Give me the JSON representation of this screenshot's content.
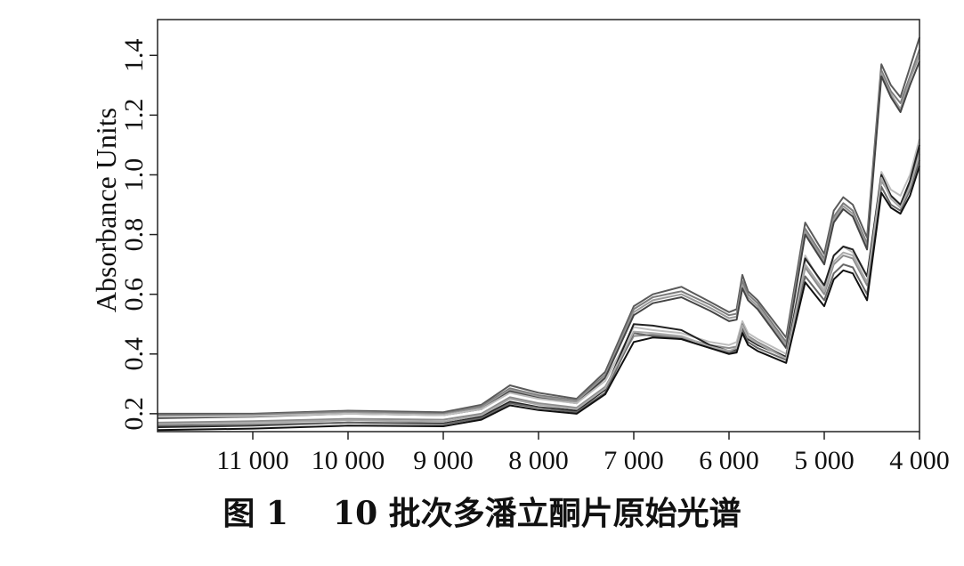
{
  "caption": "图 1    10 批次多潘立酮片原始光谱",
  "chart_data": {
    "type": "line",
    "title": "",
    "xlabel": "",
    "ylabel": "Absorbance Units",
    "x_reversed": true,
    "xlim": [
      12000,
      4000
    ],
    "ylim": [
      0.14,
      1.52
    ],
    "xticks": [
      11000,
      10000,
      9000,
      8000,
      7000,
      6000,
      5000,
      4000
    ],
    "xtick_labels": [
      "11 000",
      "10 000",
      "9 000",
      "8 000",
      "7 000",
      "6 000",
      "5 000",
      "4 000"
    ],
    "yticks": [
      0.2,
      0.4,
      0.6,
      0.8,
      1.0,
      1.2,
      1.4
    ],
    "ytick_labels": [
      "0.2",
      "0.4",
      "0.6",
      "0.8",
      "1.0",
      "1.2",
      "1.4"
    ],
    "grid": false,
    "legend": "none",
    "x": [
      12000,
      11000,
      10000,
      9000,
      8600,
      8300,
      8000,
      7600,
      7300,
      7000,
      6800,
      6500,
      6200,
      6000,
      5920,
      5860,
      5800,
      5700,
      5400,
      5200,
      5000,
      4900,
      4800,
      4700,
      4550,
      4400,
      4300,
      4200,
      4100,
      4000
    ],
    "series": [
      {
        "color": "#5a5a5a",
        "values": [
          0.2,
          0.2,
          0.21,
          0.205,
          0.23,
          0.295,
          0.27,
          0.25,
          0.34,
          0.56,
          0.6,
          0.625,
          0.575,
          0.54,
          0.55,
          0.665,
          0.61,
          0.58,
          0.455,
          0.84,
          0.735,
          0.88,
          0.925,
          0.9,
          0.79,
          1.37,
          1.3,
          1.26,
          1.36,
          1.46
        ]
      },
      {
        "color": "#7c7c7c",
        "values": [
          0.195,
          0.197,
          0.207,
          0.2,
          0.225,
          0.285,
          0.262,
          0.245,
          0.33,
          0.55,
          0.59,
          0.61,
          0.565,
          0.53,
          0.535,
          0.645,
          0.6,
          0.57,
          0.44,
          0.82,
          0.72,
          0.86,
          0.905,
          0.88,
          0.77,
          1.35,
          1.28,
          1.24,
          1.33,
          1.42
        ]
      },
      {
        "color": "#9a9a9a",
        "values": [
          0.19,
          0.193,
          0.203,
          0.197,
          0.22,
          0.28,
          0.257,
          0.24,
          0.325,
          0.54,
          0.58,
          0.6,
          0.555,
          0.52,
          0.525,
          0.63,
          0.59,
          0.56,
          0.43,
          0.81,
          0.71,
          0.85,
          0.895,
          0.87,
          0.76,
          1.34,
          1.27,
          1.22,
          1.32,
          1.4
        ]
      },
      {
        "color": "#444444",
        "values": [
          0.185,
          0.19,
          0.2,
          0.195,
          0.215,
          0.275,
          0.252,
          0.235,
          0.32,
          0.53,
          0.57,
          0.59,
          0.545,
          0.51,
          0.515,
          0.62,
          0.58,
          0.55,
          0.42,
          0.8,
          0.7,
          0.84,
          0.885,
          0.86,
          0.75,
          1.33,
          1.26,
          1.21,
          1.3,
          1.38
        ]
      },
      {
        "color": "#bdbdbd",
        "values": [
          0.19,
          0.192,
          0.2,
          0.195,
          0.215,
          0.27,
          0.25,
          0.235,
          0.31,
          0.49,
          0.48,
          0.47,
          0.44,
          0.43,
          0.44,
          0.51,
          0.47,
          0.45,
          0.4,
          0.73,
          0.62,
          0.73,
          0.76,
          0.74,
          0.66,
          1.01,
          0.95,
          0.93,
          1.0,
          1.12
        ]
      },
      {
        "color": "#8c8c8c",
        "values": [
          0.17,
          0.175,
          0.183,
          0.18,
          0.2,
          0.255,
          0.235,
          0.22,
          0.29,
          0.46,
          0.465,
          0.455,
          0.43,
          0.42,
          0.425,
          0.5,
          0.46,
          0.44,
          0.39,
          0.69,
          0.6,
          0.7,
          0.73,
          0.72,
          0.63,
          0.98,
          0.93,
          0.9,
          0.97,
          1.09
        ]
      },
      {
        "color": "#222222",
        "values": [
          0.155,
          0.16,
          0.17,
          0.167,
          0.19,
          0.24,
          0.222,
          0.21,
          0.28,
          0.5,
          0.495,
          0.48,
          0.43,
          0.41,
          0.415,
          0.49,
          0.45,
          0.43,
          0.39,
          0.72,
          0.63,
          0.73,
          0.76,
          0.75,
          0.66,
          1.0,
          0.93,
          0.9,
          0.98,
          1.1
        ]
      },
      {
        "color": "#666666",
        "values": [
          0.16,
          0.163,
          0.17,
          0.165,
          0.185,
          0.235,
          0.22,
          0.205,
          0.27,
          0.47,
          0.46,
          0.45,
          0.42,
          0.405,
          0.41,
          0.48,
          0.44,
          0.42,
          0.38,
          0.66,
          0.58,
          0.67,
          0.7,
          0.69,
          0.6,
          0.96,
          0.9,
          0.88,
          0.95,
          1.05
        ]
      },
      {
        "color": "#aaaaaa",
        "values": [
          0.165,
          0.17,
          0.178,
          0.173,
          0.195,
          0.25,
          0.23,
          0.215,
          0.285,
          0.475,
          0.47,
          0.46,
          0.425,
          0.41,
          0.42,
          0.495,
          0.455,
          0.435,
          0.385,
          0.7,
          0.61,
          0.71,
          0.74,
          0.73,
          0.64,
          0.99,
          0.92,
          0.89,
          0.96,
          1.07
        ]
      },
      {
        "color": "#111111",
        "values": [
          0.145,
          0.15,
          0.16,
          0.158,
          0.18,
          0.228,
          0.212,
          0.2,
          0.265,
          0.44,
          0.455,
          0.45,
          0.42,
          0.4,
          0.405,
          0.47,
          0.43,
          0.41,
          0.37,
          0.64,
          0.56,
          0.65,
          0.68,
          0.67,
          0.58,
          0.94,
          0.89,
          0.87,
          0.93,
          1.03
        ]
      }
    ]
  }
}
